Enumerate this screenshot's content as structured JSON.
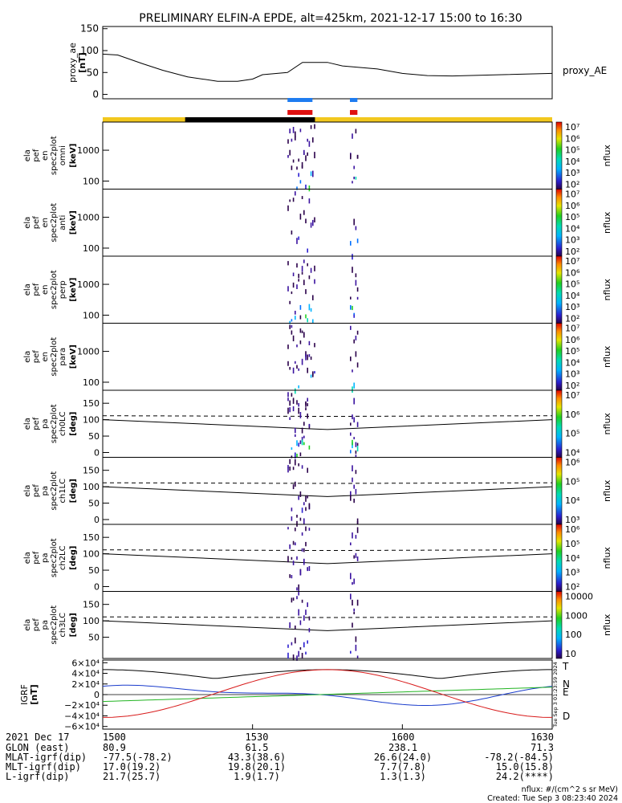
{
  "title": "PRELIMINARY ELFIN-A EPDE, alt=425km, 2021-12-17 15:00 to 16:30",
  "chart_data": {
    "type": "multi-panel",
    "time_range": [
      "15:00",
      "16:30"
    ],
    "panels": {
      "proxy_ae": {
        "type": "line",
        "ylabel": [
          "proxy_ae",
          "[nT]"
        ],
        "ylim": [
          -10,
          155
        ],
        "yticks": [
          "0",
          "50",
          "100",
          "150"
        ],
        "yticks_v": [
          0,
          50,
          100,
          150
        ],
        "legend": "proxy_AE",
        "x": [
          0,
          3,
          8,
          12,
          17,
          23,
          27,
          30,
          32,
          37,
          40,
          45,
          48,
          55,
          60,
          65,
          70,
          80,
          90
        ],
        "y": [
          92,
          90,
          70,
          55,
          40,
          30,
          30,
          35,
          45,
          50,
          73,
          73,
          65,
          58,
          48,
          43,
          42,
          45,
          48
        ]
      },
      "bars": {
        "upper_blue": [
          [
            37,
            42
          ],
          [
            49.5,
            51
          ]
        ],
        "upper_red": [
          [
            37,
            42
          ],
          [
            49.5,
            51
          ]
        ],
        "track_colors": {
          "sunlit": "#f2c81e",
          "shadow": "#000000"
        },
        "track_shadow": [
          16.5,
          42.5
        ]
      },
      "spectra": [
        {
          "labels": [
            "ela",
            "pef",
            "en",
            "spec2plot",
            "omni",
            "[keV]"
          ],
          "yticks": [
            "100",
            "1000"
          ],
          "cbar_ticks": [
            "10⁷",
            "10⁶",
            "10⁵",
            "10⁴",
            "10³",
            "10²"
          ],
          "cbar_label": "nflux"
        },
        {
          "labels": [
            "ela",
            "pef",
            "en",
            "spec2plot",
            "anti",
            "[keV]"
          ],
          "yticks": [
            "100",
            "1000"
          ],
          "cbar_ticks": [
            "10⁷",
            "10⁶",
            "10⁵",
            "10⁴",
            "10³",
            "10²"
          ],
          "cbar_label": "nflux"
        },
        {
          "labels": [
            "ela",
            "pef",
            "en",
            "spec2plot",
            "perp",
            "[keV]"
          ],
          "yticks": [
            "100",
            "1000"
          ],
          "cbar_ticks": [
            "10⁷",
            "10⁶",
            "10⁵",
            "10⁴",
            "10³",
            "10²"
          ],
          "cbar_label": "nflux"
        },
        {
          "labels": [
            "ela",
            "pef",
            "en",
            "spec2plot",
            "para",
            "[keV]"
          ],
          "yticks": [
            "100",
            "1000"
          ],
          "cbar_ticks": [
            "10⁷",
            "10⁶",
            "10⁵",
            "10⁴",
            "10³",
            "10²"
          ],
          "cbar_label": "nflux"
        }
      ],
      "pitch": [
        {
          "labels": [
            "ela",
            "pef",
            "pa",
            "spec2plot",
            "ch0LC",
            "[deg]"
          ],
          "yticks": [
            "0",
            "50",
            "100",
            "150"
          ],
          "cbar_ticks": [
            "10⁷",
            "10⁶",
            "10⁵",
            "10⁴"
          ],
          "cbar_label": "nflux"
        },
        {
          "labels": [
            "ela",
            "pef",
            "pa",
            "spec2plot",
            "ch1LC",
            "[deg]"
          ],
          "yticks": [
            "0",
            "50",
            "100",
            "150"
          ],
          "cbar_ticks": [
            "10⁶",
            "10⁵",
            "10⁴",
            "10³"
          ],
          "cbar_label": "nflux"
        },
        {
          "labels": [
            "ela",
            "pef",
            "pa",
            "spec2plot",
            "ch2LC",
            "[deg]"
          ],
          "yticks": [
            "0",
            "50",
            "100",
            "150"
          ],
          "cbar_ticks": [
            "10⁶",
            "10⁵",
            "10⁴",
            "10³",
            "10²"
          ],
          "cbar_label": "nflux"
        },
        {
          "labels": [
            "ela",
            "pef",
            "pa",
            "spec2plot",
            "ch3LC",
            "[deg]"
          ],
          "yticks": [
            "50",
            "100",
            "150"
          ],
          "cbar_ticks": [
            "10000",
            "1000",
            "100",
            "10"
          ],
          "cbar_label": "nflux"
        }
      ],
      "igrf": {
        "type": "line",
        "ylabel": [
          "IGRF",
          "[nT]"
        ],
        "yticks": [
          "6×10⁴",
          "4×10⁴",
          "2×10⁴",
          "0",
          "−2×10⁴",
          "−4×10⁴",
          "−6×10⁴"
        ],
        "legend": [
          {
            "name": "T",
            "color": "#000000"
          },
          {
            "name": "N",
            "color": "#1a3ccc"
          },
          {
            "name": "E",
            "color": "#22b422"
          },
          {
            "name": "D",
            "color": "#d81b1b"
          }
        ],
        "side_text": "Tue Sep  3 01:23:59 2024"
      }
    },
    "x_ticks": [
      "1500",
      "1530",
      "1600",
      "1630"
    ],
    "ephemeris": [
      {
        "label": "2021 Dec 17",
        "values": [
          "1500",
          "1530",
          "1600",
          "1630"
        ]
      },
      {
        "label": "GLON (east)",
        "values": [
          "80.9",
          "61.5",
          "238.1",
          "71.3"
        ]
      },
      {
        "label": "MLAT-igrf(dip)",
        "values": [
          "-77.5(-78.2)",
          "43.3(38.6)",
          "26.6(24.0)",
          "-78.2(-84.5)"
        ]
      },
      {
        "label": "MLT-igrf(dip)",
        "values": [
          "17.0(19.2)",
          "19.8(20.1)",
          "7.7(7.8)",
          "15.0(15.8)"
        ]
      },
      {
        "label": "L-igrf(dip)",
        "values": [
          "21.7(25.7)",
          "1.9(1.7)",
          "1.3(1.3)",
          "24.2(****)"
        ]
      }
    ]
  },
  "footer": {
    "units": "nflux: #/(cm^2 s sr MeV)",
    "created": "Created: Tue Sep  3 08:23:40 2024"
  }
}
